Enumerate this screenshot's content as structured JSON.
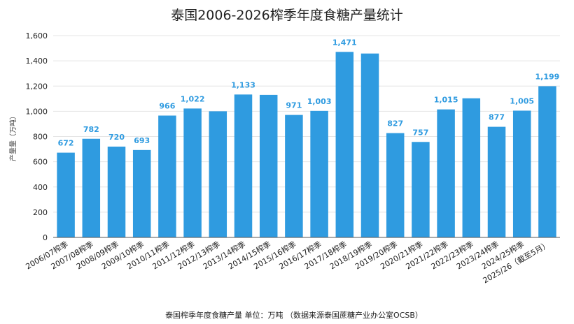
{
  "colors": {
    "bar": "#2f9be0",
    "data_label": "#2f9be0",
    "grid": "#e4e4e4",
    "axis": "#555555",
    "text": "#222222"
  },
  "chart_data": {
    "type": "bar",
    "title": "泰国2006-2026榨季年度食糖产量统计",
    "ylabel": "产量量（万吨）",
    "xlabel": "",
    "caption": "泰国榨季年度食糖产量  单位：万吨  （数据来源泰国蔗糖产业办公室OCSB）",
    "ylim": [
      0,
      1600
    ],
    "yticks": [
      0,
      200,
      400,
      600,
      800,
      1000,
      1200,
      1400,
      1600
    ],
    "ytick_labels": [
      "0",
      "200",
      "400",
      "600",
      "800",
      "1,000",
      "1,200",
      "1,400",
      "1,600"
    ],
    "grid": true,
    "categories": [
      "2006/07榨季",
      "2007/08榨季",
      "2008/09榨季",
      "2009/10榨季",
      "2010/11榨季",
      "2011/12榨季",
      "2012/13榨季",
      "2013/14榨季",
      "2014/15榨季",
      "2015/16榨季",
      "2016/17榨季",
      "2017/18榨季",
      "2018/19榨季",
      "2019/20榨季",
      "2020/21榨季",
      "2021/22榨季",
      "2022/23榨季",
      "2023/24榨季",
      "2024/25榨季",
      "2025/26（截至5月）"
    ],
    "values": [
      672,
      782,
      720,
      693,
      966,
      1022,
      1000,
      1133,
      1130,
      971,
      1003,
      1471,
      1458,
      827,
      757,
      1015,
      1103,
      877,
      1005,
      1199
    ],
    "data_labels": [
      "672",
      "782",
      "720",
      "693",
      "966",
      "1,022",
      "",
      "1,133",
      "",
      "971",
      "1,003",
      "1,471",
      "",
      "827",
      "757",
      "1,015",
      "",
      "877",
      "1,005",
      "1,199"
    ]
  }
}
